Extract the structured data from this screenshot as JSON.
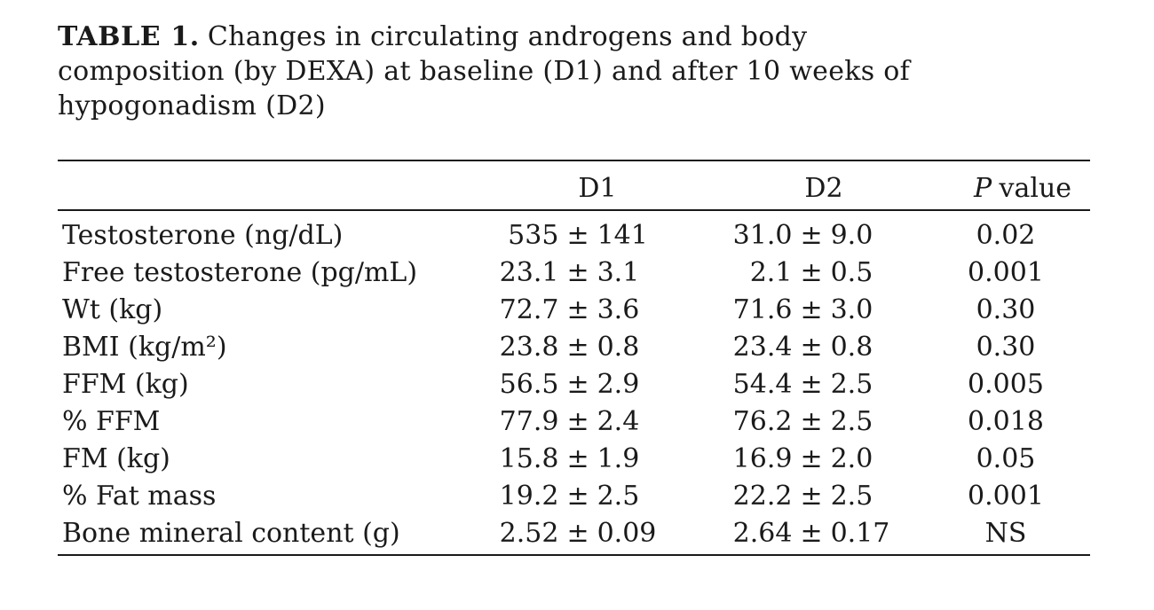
{
  "page": {
    "background_color": "#ffffff",
    "text_color": "#1a1a1a",
    "rule_color": "#1a1a1a"
  },
  "caption": {
    "label": "TABLE 1.",
    "line1": "Changes in circulating androgens and body",
    "line2": "composition (by DEXA) at baseline (D1) and after 10 weeks of",
    "line3": "hypogonadism (D2)"
  },
  "table": {
    "header": {
      "col1": "",
      "d1": "D1",
      "d2": "D2",
      "p_italic": "P",
      "p_rest": "value"
    },
    "rows": [
      {
        "label": "Testosterone (ng/dL)",
        "d1": "535 ± 141",
        "d2": "31.0 ± 9.0",
        "p": "0.02"
      },
      {
        "label": "Free testosterone (pg/mL)",
        "d1": "23.1 ± 3.1",
        "d2": "2.1 ± 0.5",
        "p": "0.001"
      },
      {
        "label": "Wt (kg)",
        "d1": "72.7 ± 3.6",
        "d2": "71.6 ± 3.0",
        "p": "0.30"
      },
      {
        "label": "BMI (kg/m²)",
        "d1": "23.8 ± 0.8",
        "d2": "23.4 ± 0.8",
        "p": "0.30"
      },
      {
        "label": "FFM (kg)",
        "d1": "56.5 ± 2.9",
        "d2": "54.4 ± 2.5",
        "p": "0.005"
      },
      {
        "label": "% FFM",
        "d1": "77.9 ± 2.4",
        "d2": "76.2 ± 2.5",
        "p": "0.018"
      },
      {
        "label": "FM (kg)",
        "d1": "15.8 ± 1.9",
        "d2": "16.9 ± 2.0",
        "p": "0.05"
      },
      {
        "label": "% Fat mass",
        "d1": "19.2 ± 2.5",
        "d2": "22.2 ± 2.5",
        "p": "0.001"
      },
      {
        "label": "Bone mineral content (g)",
        "d1": "2.52 ± 0.09",
        "d2": "2.64 ± 0.17",
        "p": "NS"
      }
    ]
  }
}
